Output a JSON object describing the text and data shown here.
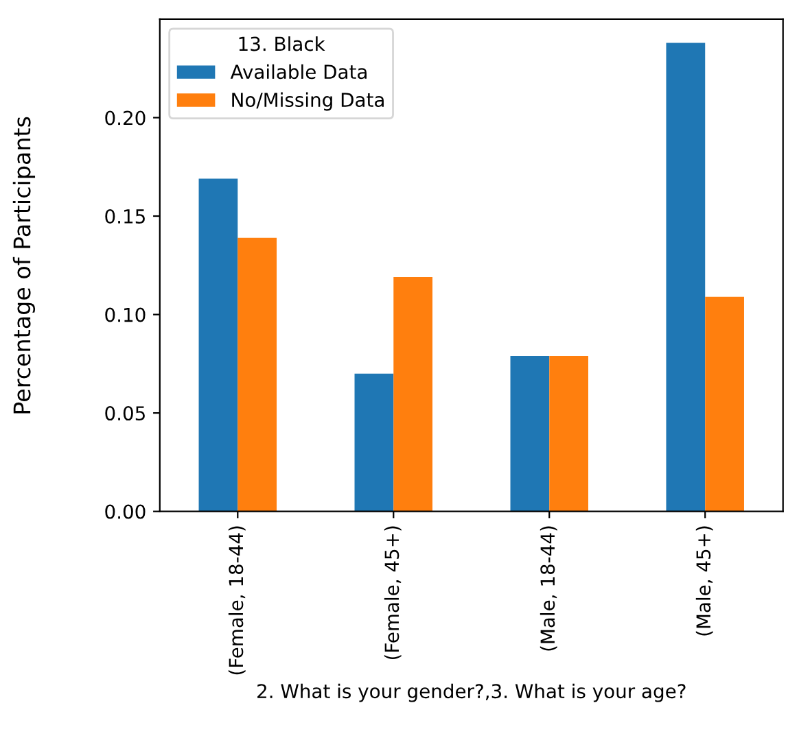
{
  "chart_data": {
    "type": "bar",
    "categories": [
      "(Female, 18-44)",
      "(Female, 45+)",
      "(Male, 18-44)",
      "(Male, 45+)"
    ],
    "series": [
      {
        "name": "Available Data",
        "color": "#1f77b4",
        "values": [
          0.169,
          0.07,
          0.079,
          0.238
        ]
      },
      {
        "name": "No/Missing Data",
        "color": "#ff7f0e",
        "values": [
          0.139,
          0.119,
          0.079,
          0.109
        ]
      }
    ],
    "legend_title": "13. Black",
    "legend": "top left",
    "xlabel": "2. What is your gender?,3. What is your age?",
    "ylabel": "Percentage of Participants",
    "ylim": [
      0,
      0.25
    ],
    "yticks": [
      {
        "value": 0,
        "label": "0.00"
      },
      {
        "value": 0.05,
        "label": "0.05"
      },
      {
        "value": 0.1,
        "label": "0.10"
      },
      {
        "value": 0.15,
        "label": "0.15"
      },
      {
        "value": 0.2,
        "label": "0.20"
      }
    ],
    "grid": false
  }
}
